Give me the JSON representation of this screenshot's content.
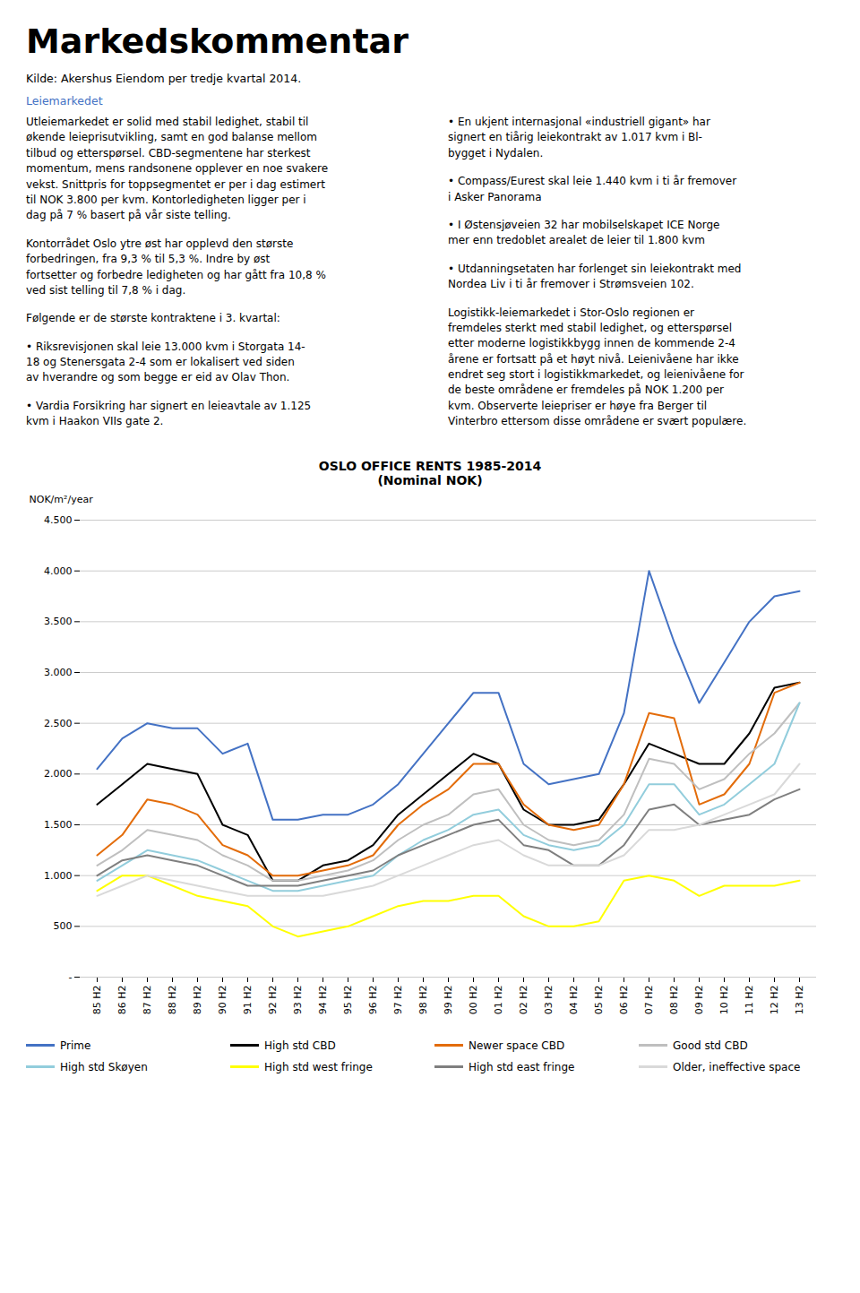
{
  "title": "Markedskommentar",
  "subtitle": "Kilde: Akershus Eiendom per tredje kvartal 2014.",
  "section_header": "Leiemarkedet",
  "text_left": [
    "Utleiemarkedet er solid med stabil ledighet, stabil til\nøkende leieprisutvikling, samt en god balanse mellom\ntilbud og etterspørsel. CBD-segmentene har sterkest\nmomentum, mens randsonene opplever en noe svakere\nvekst. Snittpris for toppsegmentet er per i dag estimert\ntil NOK 3.800 per kvm. Kontorledigheten ligger per i\ndag på 7 % basert på vår siste telling.",
    "Kontorrådet Oslo ytre øst har opplevd den største\nforbedringen, fra 9,3 % til 5,3 %. Indre by øst\nfortsetter og forbedre ledigheten og har gått fra 10,8 %\nved sist telling til 7,8 % i dag.",
    "Følgende er de største kontraktene i 3. kvartal:",
    "•  Riksrevisjonen skal leie 13.000 kvm i Storgata 14-\n18 og Stenersgata 2-4 som er lokalisert ved siden\nav hverandre og som begge er eid av Olav Thon.",
    "•  Vardia Forsikring har signert en leieavtale av 1.125\nkvm i Haakon VIIs gate 2."
  ],
  "text_right": [
    "•  En ukjent internasjonal «industriell gigant» har\nsignert en tiårig leiekontrakt av 1.017 kvm i Bl-\nbygget i Nydalen.",
    "•  Compass/Eurest skal leie 1.440 kvm i ti år fremover\ni Asker Panorama",
    "•  I Østensjøveien 32 har mobilselskapet ICE Norge\nmer enn tredoblet arealet de leier til 1.800 kvm",
    "•  Utdanningsetaten har forlenget sin leiekontrakt med\nNordea Liv i ti år fremover i Strømsveien 102.",
    "Logistikk-leiemarkedet i Stor-Oslo regionen er\nfremdeles sterkt med stabil ledighet, og etterspørsel\netter moderne logistikkbygg innen de kommende 2-4\nårene er fortsatt på et høyt nivå. Leienivåene har ikke\nendret seg stort i logistikkmarkedet, og leienivåene for\nde beste områdene er fremdeles på NOK 1.200 per\nkvm. Observerte leiepriser er høye fra Berger til\nVinterbro ettersom disse områdene er svært populære."
  ],
  "chart_data": {
    "type": "line",
    "title": "OSLO OFFICE RENTS 1985-2014",
    "subtitle": "(Nominal NOK)",
    "ylabel": "NOK/m²/year",
    "categories": [
      "85 H2",
      "86 H2",
      "87 H2",
      "88 H2",
      "89 H2",
      "90 H2",
      "91 H2",
      "92 H2",
      "93 H2",
      "94 H2",
      "95 H2",
      "96 H2",
      "97 H2",
      "98 H2",
      "99 H2",
      "00 H2",
      "01 H2",
      "02 H2",
      "03 H2",
      "04 H2",
      "05 H2",
      "06 H2",
      "07 H2",
      "08 H2",
      "09 H2",
      "10 H2",
      "11 H2",
      "12 H2",
      "13 H2"
    ],
    "series": [
      {
        "name": "Prime",
        "color": "#4472C4",
        "values": [
          2050,
          2350,
          2500,
          2450,
          2450,
          2200,
          2300,
          1550,
          1550,
          1600,
          1600,
          1700,
          1900,
          2200,
          2500,
          2800,
          2800,
          2100,
          1900,
          1950,
          2000,
          2600,
          4000,
          3300,
          2700,
          3100,
          3500,
          3750,
          3800
        ]
      },
      {
        "name": "High std CBD",
        "color": "#000000",
        "values": [
          1700,
          1900,
          2100,
          2050,
          2000,
          1500,
          1400,
          950,
          950,
          1100,
          1150,
          1300,
          1600,
          1800,
          2000,
          2200,
          2100,
          1650,
          1500,
          1500,
          1550,
          1900,
          2300,
          2200,
          2100,
          2100,
          2400,
          2850,
          2900
        ]
      },
      {
        "name": "Newer space CBD",
        "color": "#E36C0A",
        "values": [
          1200,
          1400,
          1750,
          1700,
          1600,
          1300,
          1200,
          1000,
          1000,
          1050,
          1100,
          1200,
          1500,
          1700,
          1850,
          2100,
          2100,
          1700,
          1500,
          1450,
          1500,
          1900,
          2600,
          2550,
          1700,
          1800,
          2100,
          2800,
          2900
        ]
      },
      {
        "name": "Good std CBD",
        "color": "#BFBFBF",
        "values": [
          1100,
          1250,
          1450,
          1400,
          1350,
          1200,
          1100,
          950,
          950,
          1000,
          1050,
          1150,
          1350,
          1500,
          1600,
          1800,
          1850,
          1500,
          1350,
          1300,
          1350,
          1600,
          2150,
          2100,
          1850,
          1950,
          2200,
          2400,
          2700
        ]
      },
      {
        "name": "High std Skøyen",
        "color": "#92CDDC",
        "values": [
          950,
          1100,
          1250,
          1200,
          1150,
          1050,
          950,
          850,
          850,
          900,
          950,
          1000,
          1200,
          1350,
          1450,
          1600,
          1650,
          1400,
          1300,
          1250,
          1300,
          1500,
          1900,
          1900,
          1600,
          1700,
          1900,
          2100,
          2700
        ]
      },
      {
        "name": "High std west fringe",
        "color": "#FFFF00",
        "values": [
          850,
          1000,
          1000,
          900,
          800,
          750,
          700,
          500,
          400,
          450,
          500,
          600,
          700,
          750,
          750,
          800,
          800,
          600,
          500,
          500,
          550,
          950,
          1000,
          950,
          800,
          900,
          900,
          900,
          950
        ]
      },
      {
        "name": "High std east fringe",
        "color": "#7F7F7F",
        "values": [
          1000,
          1150,
          1200,
          1150,
          1100,
          1000,
          900,
          900,
          900,
          950,
          1000,
          1050,
          1200,
          1300,
          1400,
          1500,
          1550,
          1300,
          1250,
          1100,
          1100,
          1300,
          1650,
          1700,
          1500,
          1550,
          1600,
          1750,
          1850
        ]
      },
      {
        "name": "Older, ineffective space",
        "color": "#D9D9D9",
        "values": [
          800,
          900,
          1000,
          950,
          900,
          850,
          800,
          800,
          800,
          800,
          850,
          900,
          1000,
          1100,
          1200,
          1300,
          1350,
          1200,
          1100,
          1100,
          1100,
          1200,
          1450,
          1450,
          1500,
          1600,
          1700,
          1800,
          2100
        ]
      }
    ],
    "ylim": [
      0,
      4500
    ],
    "yticks": [
      {
        "value": 0,
        "label": "-"
      },
      500,
      {
        "value": 1000,
        "label": "1.000"
      },
      {
        "value": 1500,
        "label": "1.500"
      },
      {
        "value": 2000,
        "label": "2.000"
      },
      {
        "value": 2500,
        "label": "2.500"
      },
      {
        "value": 3000,
        "label": "3.000"
      },
      {
        "value": 3500,
        "label": "3.500"
      },
      {
        "value": 4000,
        "label": "4.000"
      },
      {
        "value": 4500,
        "label": "4.500"
      }
    ],
    "grid": true,
    "legend": "bottom"
  }
}
